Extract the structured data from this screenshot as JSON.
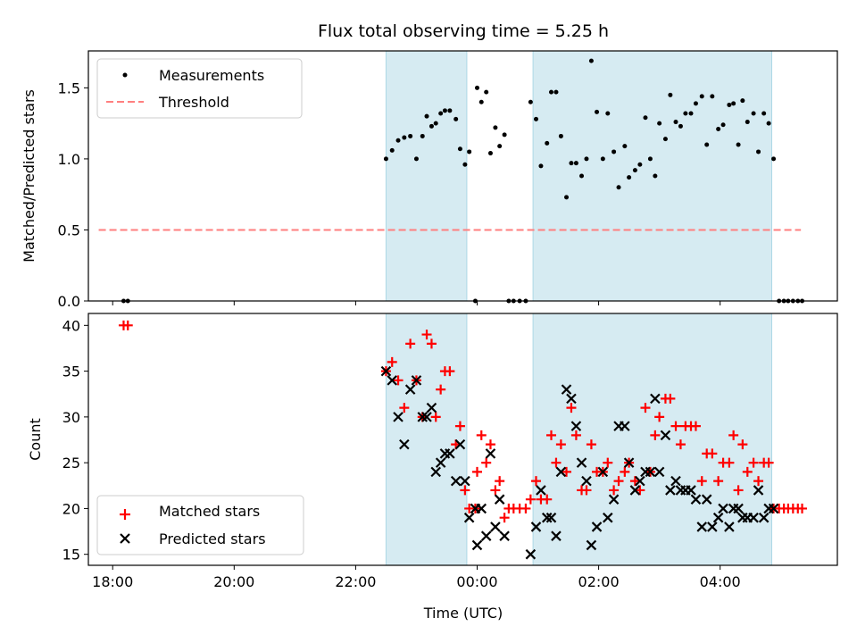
{
  "title": "Flux total observing time = 5.25 h",
  "colors": {
    "shade": "#add8e6",
    "measurement": "#000000",
    "threshold": "#ff7f7f",
    "matched": "#ff0000",
    "predicted": "#000000"
  },
  "chart_data": [
    {
      "type": "scatter",
      "name": "ratio-panel",
      "ylabel": "Matched/Predicted stars",
      "xlim": [
        17.6,
        29.93
      ],
      "ylim": [
        0,
        1.76
      ],
      "yticks": [
        0.0,
        0.5,
        1.0,
        1.5
      ],
      "ytick_labels": [
        "0.0",
        "0.5",
        "1.0",
        "1.5"
      ],
      "grid": false,
      "legend": "top-left",
      "shaded_intervals": [
        [
          22.5,
          23.83
        ],
        [
          24.92,
          28.85
        ]
      ],
      "threshold": {
        "label": "Threshold",
        "y": 0.5,
        "x": [
          17.77,
          29.33
        ]
      },
      "measurements": {
        "label": "Measurements",
        "points": [
          [
            18.18,
            0.0
          ],
          [
            18.25,
            0.0
          ],
          [
            22.5,
            1.0
          ],
          [
            22.6,
            1.06
          ],
          [
            22.7,
            1.13
          ],
          [
            22.8,
            1.15
          ],
          [
            22.9,
            1.16
          ],
          [
            23.0,
            1.0
          ],
          [
            23.1,
            1.16
          ],
          [
            23.17,
            1.3
          ],
          [
            23.25,
            1.23
          ],
          [
            23.32,
            1.25
          ],
          [
            23.4,
            1.32
          ],
          [
            23.47,
            1.34
          ],
          [
            23.55,
            1.34
          ],
          [
            23.65,
            1.28
          ],
          [
            23.72,
            1.07
          ],
          [
            23.8,
            0.96
          ],
          [
            23.87,
            1.05
          ],
          [
            23.97,
            0.0
          ],
          [
            24.0,
            1.5
          ],
          [
            24.07,
            1.4
          ],
          [
            24.15,
            1.47
          ],
          [
            24.22,
            1.04
          ],
          [
            24.3,
            1.22
          ],
          [
            24.37,
            1.09
          ],
          [
            24.45,
            1.17
          ],
          [
            24.52,
            0.0
          ],
          [
            24.6,
            0.0
          ],
          [
            24.7,
            0.0
          ],
          [
            24.8,
            0.0
          ],
          [
            24.88,
            1.4
          ],
          [
            24.97,
            1.28
          ],
          [
            25.05,
            0.95
          ],
          [
            25.15,
            1.11
          ],
          [
            25.22,
            1.47
          ],
          [
            25.3,
            1.47
          ],
          [
            25.38,
            1.16
          ],
          [
            25.47,
            0.73
          ],
          [
            25.55,
            0.97
          ],
          [
            25.63,
            0.97
          ],
          [
            25.72,
            0.88
          ],
          [
            25.8,
            1.0
          ],
          [
            25.88,
            1.69
          ],
          [
            25.97,
            1.33
          ],
          [
            26.07,
            1.0
          ],
          [
            26.15,
            1.32
          ],
          [
            26.25,
            1.05
          ],
          [
            26.33,
            0.8
          ],
          [
            26.43,
            1.09
          ],
          [
            26.5,
            0.87
          ],
          [
            26.6,
            0.92
          ],
          [
            26.68,
            0.96
          ],
          [
            26.77,
            1.29
          ],
          [
            26.85,
            1.0
          ],
          [
            26.93,
            0.88
          ],
          [
            27.0,
            1.25
          ],
          [
            27.1,
            1.14
          ],
          [
            27.18,
            1.45
          ],
          [
            27.27,
            1.26
          ],
          [
            27.35,
            1.23
          ],
          [
            27.43,
            1.32
          ],
          [
            27.52,
            1.32
          ],
          [
            27.6,
            1.39
          ],
          [
            27.7,
            1.44
          ],
          [
            27.78,
            1.1
          ],
          [
            27.87,
            1.44
          ],
          [
            27.97,
            1.21
          ],
          [
            28.05,
            1.24
          ],
          [
            28.15,
            1.38
          ],
          [
            28.22,
            1.39
          ],
          [
            28.3,
            1.1
          ],
          [
            28.37,
            1.41
          ],
          [
            28.45,
            1.26
          ],
          [
            28.55,
            1.32
          ],
          [
            28.63,
            1.05
          ],
          [
            28.72,
            1.32
          ],
          [
            28.8,
            1.25
          ],
          [
            28.88,
            1.0
          ],
          [
            28.97,
            0.0
          ],
          [
            29.05,
            0.0
          ],
          [
            29.12,
            0.0
          ],
          [
            29.2,
            0.0
          ],
          [
            29.28,
            0.0
          ],
          [
            29.35,
            0.0
          ]
        ]
      }
    },
    {
      "type": "scatter",
      "name": "count-panel",
      "xlabel": "Time (UTC)",
      "ylabel": "Count",
      "xlim": [
        17.6,
        29.93
      ],
      "ylim": [
        13.8,
        41.3
      ],
      "yticks": [
        15,
        20,
        25,
        30,
        35,
        40
      ],
      "ytick_labels": [
        "15",
        "20",
        "25",
        "30",
        "35",
        "40"
      ],
      "xticks": [
        18,
        20,
        22,
        24,
        26,
        28
      ],
      "xtick_labels": [
        "18:00",
        "20:00",
        "22:00",
        "00:00",
        "02:00",
        "04:00"
      ],
      "grid": false,
      "legend": "bottom-left",
      "shaded_intervals": [
        [
          22.5,
          23.83
        ],
        [
          24.92,
          28.85
        ]
      ],
      "series": [
        {
          "name": "Matched stars",
          "marker": "plus",
          "points": [
            [
              18.18,
              40
            ],
            [
              18.25,
              40
            ],
            [
              22.5,
              35
            ],
            [
              22.6,
              36
            ],
            [
              22.7,
              34
            ],
            [
              22.8,
              31
            ],
            [
              22.9,
              38
            ],
            [
              23.0,
              34
            ],
            [
              23.1,
              30
            ],
            [
              23.17,
              39
            ],
            [
              23.25,
              38
            ],
            [
              23.32,
              30
            ],
            [
              23.4,
              33
            ],
            [
              23.47,
              35
            ],
            [
              23.55,
              35
            ],
            [
              23.65,
              27
            ],
            [
              23.72,
              29
            ],
            [
              23.8,
              22
            ],
            [
              23.87,
              20
            ],
            [
              23.97,
              20
            ],
            [
              24.0,
              24
            ],
            [
              24.07,
              28
            ],
            [
              24.15,
              25
            ],
            [
              24.22,
              27
            ],
            [
              24.3,
              22
            ],
            [
              24.37,
              23
            ],
            [
              24.45,
              19
            ],
            [
              24.52,
              20
            ],
            [
              24.6,
              20
            ],
            [
              24.7,
              20
            ],
            [
              24.8,
              20
            ],
            [
              24.88,
              21
            ],
            [
              24.97,
              23
            ],
            [
              25.05,
              21
            ],
            [
              25.15,
              21
            ],
            [
              25.22,
              28
            ],
            [
              25.3,
              25
            ],
            [
              25.38,
              27
            ],
            [
              25.47,
              24
            ],
            [
              25.55,
              31
            ],
            [
              25.63,
              28
            ],
            [
              25.72,
              22
            ],
            [
              25.8,
              22
            ],
            [
              25.88,
              27
            ],
            [
              25.97,
              24
            ],
            [
              26.07,
              24
            ],
            [
              26.15,
              25
            ],
            [
              26.25,
              22
            ],
            [
              26.33,
              23
            ],
            [
              26.43,
              24
            ],
            [
              26.5,
              25
            ],
            [
              26.6,
              23
            ],
            [
              26.68,
              22
            ],
            [
              26.77,
              31
            ],
            [
              26.85,
              24
            ],
            [
              26.93,
              28
            ],
            [
              27.0,
              30
            ],
            [
              27.1,
              32
            ],
            [
              27.18,
              32
            ],
            [
              27.27,
              29
            ],
            [
              27.35,
              27
            ],
            [
              27.43,
              29
            ],
            [
              27.52,
              29
            ],
            [
              27.6,
              29
            ],
            [
              27.7,
              23
            ],
            [
              27.78,
              26
            ],
            [
              27.87,
              26
            ],
            [
              27.97,
              23
            ],
            [
              28.05,
              25
            ],
            [
              28.15,
              25
            ],
            [
              28.22,
              28
            ],
            [
              28.3,
              22
            ],
            [
              28.37,
              27
            ],
            [
              28.45,
              24
            ],
            [
              28.55,
              25
            ],
            [
              28.63,
              23
            ],
            [
              28.72,
              25
            ],
            [
              28.8,
              25
            ],
            [
              28.88,
              20
            ],
            [
              28.97,
              20
            ],
            [
              29.05,
              20
            ],
            [
              29.12,
              20
            ],
            [
              29.2,
              20
            ],
            [
              29.28,
              20
            ],
            [
              29.35,
              20
            ]
          ]
        },
        {
          "name": "Predicted stars",
          "marker": "cross",
          "points": [
            [
              22.5,
              35
            ],
            [
              22.6,
              34
            ],
            [
              22.7,
              30
            ],
            [
              22.8,
              27
            ],
            [
              22.9,
              33
            ],
            [
              23.0,
              34
            ],
            [
              23.1,
              30
            ],
            [
              23.17,
              30
            ],
            [
              23.25,
              31
            ],
            [
              23.32,
              24
            ],
            [
              23.4,
              25
            ],
            [
              23.47,
              26
            ],
            [
              23.55,
              26
            ],
            [
              23.65,
              23
            ],
            [
              23.72,
              27
            ],
            [
              23.8,
              23
            ],
            [
              23.87,
              19
            ],
            [
              23.97,
              20
            ],
            [
              24.0,
              16
            ],
            [
              24.07,
              20
            ],
            [
              24.15,
              17
            ],
            [
              24.22,
              26
            ],
            [
              24.3,
              18
            ],
            [
              24.37,
              21
            ],
            [
              24.45,
              17
            ],
            [
              24.88,
              15
            ],
            [
              24.97,
              18
            ],
            [
              25.05,
              22
            ],
            [
              25.15,
              19
            ],
            [
              25.22,
              19
            ],
            [
              25.3,
              17
            ],
            [
              25.38,
              24
            ],
            [
              25.47,
              33
            ],
            [
              25.55,
              32
            ],
            [
              25.63,
              29
            ],
            [
              25.72,
              25
            ],
            [
              25.8,
              23
            ],
            [
              25.88,
              16
            ],
            [
              25.97,
              18
            ],
            [
              26.07,
              24
            ],
            [
              26.15,
              19
            ],
            [
              26.25,
              21
            ],
            [
              26.33,
              29
            ],
            [
              26.43,
              29
            ],
            [
              26.5,
              25
            ],
            [
              26.6,
              22
            ],
            [
              26.68,
              23
            ],
            [
              26.77,
              24
            ],
            [
              26.85,
              24
            ],
            [
              26.93,
              32
            ],
            [
              27.0,
              24
            ],
            [
              27.1,
              28
            ],
            [
              27.18,
              22
            ],
            [
              27.27,
              23
            ],
            [
              27.35,
              22
            ],
            [
              27.43,
              22
            ],
            [
              27.52,
              22
            ],
            [
              27.6,
              21
            ],
            [
              27.7,
              18
            ],
            [
              27.78,
              21
            ],
            [
              27.87,
              18
            ],
            [
              27.97,
              19
            ],
            [
              28.05,
              20
            ],
            [
              28.15,
              18
            ],
            [
              28.22,
              20
            ],
            [
              28.3,
              20
            ],
            [
              28.37,
              19
            ],
            [
              28.45,
              19
            ],
            [
              28.55,
              19
            ],
            [
              28.63,
              22
            ],
            [
              28.72,
              19
            ],
            [
              28.8,
              20
            ],
            [
              28.88,
              20
            ]
          ]
        }
      ]
    }
  ]
}
